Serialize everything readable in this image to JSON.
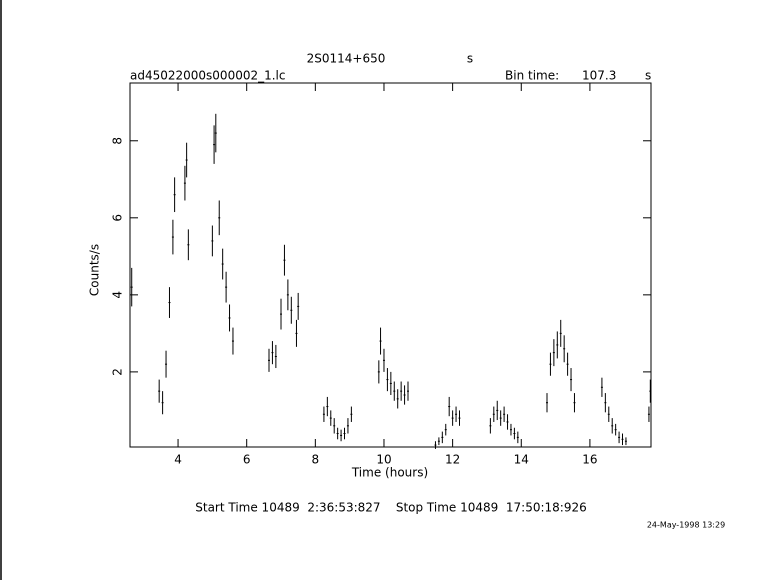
{
  "chart_data": {
    "type": "errorbar",
    "title": "2S0114+650",
    "title_unit": "s",
    "subtitle": "ad45022000s000002_1.lc",
    "bin_label": "Bin time:",
    "bin_value": 107.3,
    "bin_unit": "s",
    "xlabel": "Time (hours)",
    "ylabel": "Counts/s",
    "footer": "Start Time 10489  2:36:53:827    Stop Time 10489  17:50:18:926",
    "date": "24-May-1998 13:29",
    "color": "#000000",
    "xlim": [
      2.6,
      17.78
    ],
    "ylim": [
      0.05,
      9.5
    ],
    "xticks": [
      4,
      6,
      8,
      10,
      12,
      14,
      16
    ],
    "yticks": [
      2,
      4,
      6,
      8
    ],
    "series": [
      {
        "x": [
          2.65,
          3.45,
          3.55,
          3.65,
          3.75,
          3.85,
          3.9,
          4.2,
          4.25,
          4.3,
          5.0,
          5.05,
          5.1,
          5.2,
          5.3,
          5.4,
          5.5,
          5.6,
          6.65,
          6.75,
          6.85,
          7.0,
          7.1,
          7.2,
          7.3,
          7.45,
          7.5,
          8.25,
          8.35,
          8.45,
          8.55,
          8.65,
          8.75,
          8.85,
          8.95,
          9.05,
          9.85,
          9.9,
          10.0,
          10.1,
          10.2,
          10.3,
          10.4,
          10.5,
          10.6,
          10.7,
          11.5,
          11.6,
          11.7,
          11.8,
          11.9,
          12.0,
          12.1,
          12.2,
          13.1,
          13.2,
          13.3,
          13.4,
          13.5,
          13.6,
          13.7,
          13.8,
          13.9,
          14.75,
          14.85,
          14.95,
          15.05,
          15.15,
          15.25,
          15.35,
          15.45,
          15.55,
          16.35,
          16.45,
          16.55,
          16.65,
          16.75,
          16.85,
          16.95,
          17.05,
          17.72,
          17.76
        ],
        "values": [
          4.2,
          1.5,
          1.2,
          2.2,
          3.8,
          5.5,
          6.6,
          6.9,
          7.5,
          5.3,
          5.4,
          7.9,
          8.2,
          6.0,
          4.8,
          4.2,
          3.4,
          2.8,
          2.3,
          2.5,
          2.4,
          3.5,
          4.9,
          4.0,
          3.6,
          3.0,
          3.7,
          0.9,
          1.1,
          0.8,
          0.6,
          0.4,
          0.35,
          0.4,
          0.6,
          0.9,
          2.0,
          2.8,
          2.3,
          1.8,
          1.7,
          1.5,
          1.3,
          1.5,
          1.4,
          1.5,
          0.1,
          0.2,
          0.3,
          0.5,
          1.1,
          0.8,
          0.9,
          0.8,
          0.6,
          0.9,
          1.0,
          0.8,
          0.9,
          0.7,
          0.5,
          0.4,
          0.3,
          1.2,
          2.2,
          2.5,
          2.7,
          3.0,
          2.6,
          2.2,
          1.8,
          1.2,
          1.6,
          1.2,
          0.9,
          0.6,
          0.5,
          0.3,
          0.25,
          0.2,
          0.9,
          1.5
        ],
        "errors": [
          0.5,
          0.3,
          0.3,
          0.35,
          0.4,
          0.45,
          0.45,
          0.45,
          0.45,
          0.4,
          0.4,
          0.5,
          0.5,
          0.45,
          0.4,
          0.4,
          0.35,
          0.35,
          0.3,
          0.3,
          0.3,
          0.4,
          0.4,
          0.4,
          0.35,
          0.35,
          0.35,
          0.2,
          0.25,
          0.2,
          0.2,
          0.15,
          0.15,
          0.15,
          0.2,
          0.2,
          0.3,
          0.35,
          0.3,
          0.3,
          0.3,
          0.25,
          0.25,
          0.25,
          0.25,
          0.25,
          0.1,
          0.1,
          0.15,
          0.15,
          0.25,
          0.2,
          0.2,
          0.2,
          0.2,
          0.2,
          0.25,
          0.2,
          0.2,
          0.2,
          0.15,
          0.15,
          0.15,
          0.25,
          0.3,
          0.35,
          0.35,
          0.35,
          0.35,
          0.3,
          0.3,
          0.25,
          0.25,
          0.25,
          0.2,
          0.2,
          0.15,
          0.15,
          0.15,
          0.1,
          0.2,
          0.3
        ]
      }
    ]
  }
}
